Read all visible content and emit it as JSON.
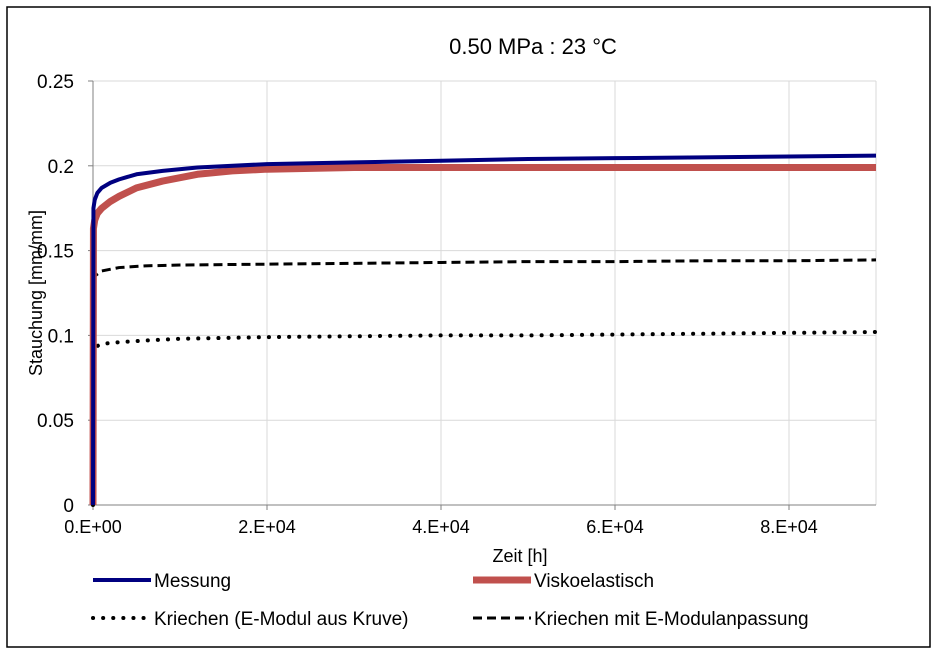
{
  "chart_data": {
    "type": "line",
    "title": "0.50 MPa : 23 °C",
    "xlabel": "Zeit [h]",
    "ylabel": "Stauchung [mm/mm]",
    "xlim": [
      0,
      90000
    ],
    "ylim": [
      0,
      0.25
    ],
    "x_ticks": [
      0,
      20000,
      40000,
      60000,
      80000
    ],
    "x_tick_labels": [
      "0.E+00",
      "2.E+04",
      "4.E+04",
      "6.E+04",
      "8.E+04"
    ],
    "y_ticks": [
      0,
      0.05,
      0.1,
      0.15,
      0.2,
      0.25
    ],
    "y_tick_labels": [
      "0",
      "0.05",
      "0.1",
      "0.15",
      "0.2",
      "0.25"
    ],
    "grid": true,
    "legend_position": "bottom",
    "series": [
      {
        "name": "Messung",
        "color": "#000080",
        "style": "solid",
        "x": [
          0,
          50,
          200,
          500,
          1000,
          2000,
          3000,
          5000,
          8000,
          12000,
          20000,
          30000,
          40000,
          50000,
          60000,
          70000,
          80000,
          90000
        ],
        "y": [
          0,
          0.175,
          0.18,
          0.184,
          0.187,
          0.19,
          0.192,
          0.195,
          0.197,
          0.199,
          0.201,
          0.202,
          0.203,
          0.204,
          0.2045,
          0.205,
          0.2055,
          0.206
        ]
      },
      {
        "name": "Viskoelastisch",
        "color": "#c0504d",
        "style": "solid",
        "x": [
          0,
          50,
          200,
          500,
          1000,
          2000,
          3000,
          5000,
          8000,
          12000,
          16000,
          20000,
          30000,
          40000,
          60000,
          90000
        ],
        "y": [
          0,
          0.163,
          0.168,
          0.172,
          0.175,
          0.179,
          0.182,
          0.187,
          0.191,
          0.195,
          0.197,
          0.198,
          0.199,
          0.199,
          0.199,
          0.199
        ]
      },
      {
        "name": "Kriechen (E-Modul aus Kruve)",
        "color": "#000000",
        "style": "dotted",
        "x": [
          0,
          50,
          200,
          1000,
          3000,
          6000,
          10000,
          20000,
          30000,
          40000,
          50000,
          60000,
          70000,
          80000,
          90000
        ],
        "y": [
          0,
          0.092,
          0.093,
          0.095,
          0.096,
          0.097,
          0.098,
          0.099,
          0.0995,
          0.1,
          0.1,
          0.1005,
          0.101,
          0.1015,
          0.102
        ]
      },
      {
        "name": "Kriechen mit E-Modulanpassung",
        "color": "#000000",
        "style": "dashed",
        "x": [
          0,
          50,
          200,
          1000,
          3000,
          6000,
          10000,
          20000,
          30000,
          40000,
          50000,
          60000,
          70000,
          80000,
          90000
        ],
        "y": [
          0,
          0.133,
          0.135,
          0.138,
          0.14,
          0.141,
          0.1415,
          0.142,
          0.1425,
          0.143,
          0.1435,
          0.1435,
          0.144,
          0.144,
          0.1445
        ]
      }
    ]
  }
}
